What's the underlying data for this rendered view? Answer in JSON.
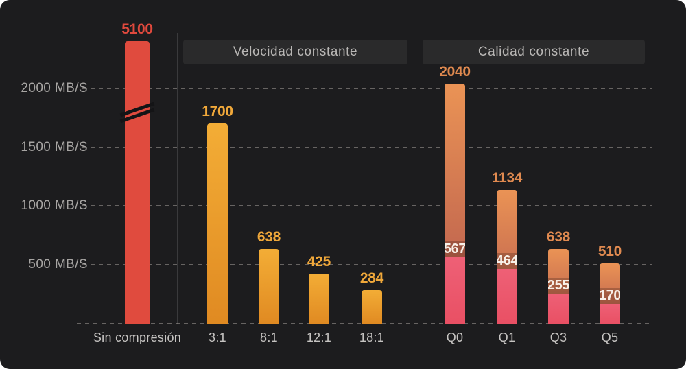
{
  "chart_data": {
    "type": "bar",
    "title": "",
    "unit": "MB/S",
    "grid": true,
    "ylim": [
      0,
      2400
    ],
    "yticks": [
      {
        "value": 2000,
        "label": "2000 MB/S"
      },
      {
        "value": 1500,
        "label": "1500 MB/S"
      },
      {
        "value": 1000,
        "label": "1000 MB/S"
      },
      {
        "value": 500,
        "label": "500 MB/S"
      }
    ],
    "axis_break": {
      "applies_to": "Sin compresión",
      "display_cap_value": 2400
    },
    "groups": [
      {
        "header": "",
        "style": "red",
        "bars": [
          {
            "label": "Sin compresión",
            "value": 5100,
            "broken": true
          }
        ]
      },
      {
        "header": "Velocidad constante",
        "style": "amber",
        "bars": [
          {
            "label": "3:1",
            "value": 1700
          },
          {
            "label": "8:1",
            "value": 638
          },
          {
            "label": "12:1",
            "value": 425
          },
          {
            "label": "18:1",
            "value": 284
          }
        ]
      },
      {
        "header": "Calidad constante",
        "style": "orange-pink",
        "bars": [
          {
            "label": "Q0",
            "value": 2040,
            "sub_value": 567
          },
          {
            "label": "Q1",
            "value": 1134,
            "sub_value": 464
          },
          {
            "label": "Q3",
            "value": 638,
            "sub_value": 255
          },
          {
            "label": "Q5",
            "value": 510,
            "sub_value": 170
          }
        ]
      }
    ],
    "palette": {
      "background": "#1c1c1e",
      "red_bar": "#e04b3e",
      "red_label": "#e0493d",
      "amber_top": "#f3ad36",
      "amber_bottom": "#e08a22",
      "amber_label": "#f0a83a",
      "orange_top": "#ea9355",
      "brick_bottom": "#b4574d",
      "orange_label": "#e08a50",
      "pink_top": "#ee6076",
      "pink_bottom": "#e95064",
      "inner_label": "#f8f0e8",
      "grid_line": "#6b6865",
      "divider": "#3a3a3c",
      "axis_text": "#a7a5a3",
      "xlabel_text": "#c6c4c2",
      "header_bg": "#2a2a2b",
      "header_text": "#b9b7b5"
    }
  }
}
